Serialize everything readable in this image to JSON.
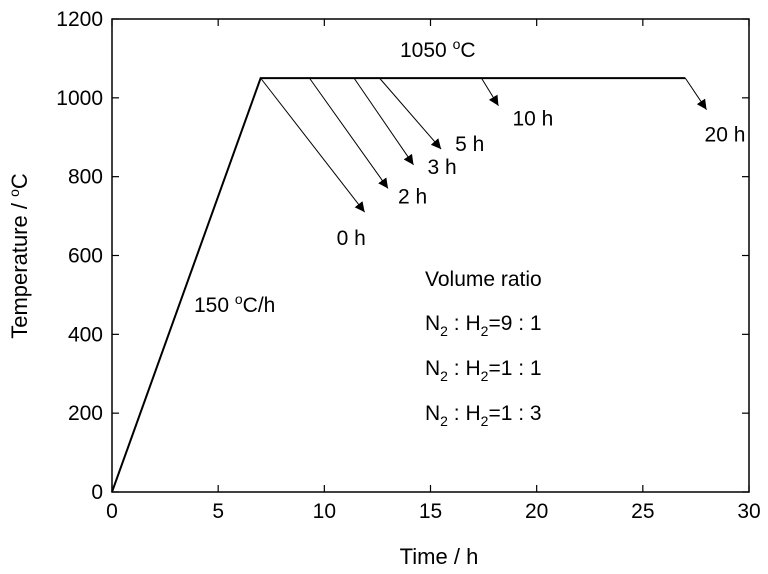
{
  "chart_data": {
    "type": "line",
    "title": "",
    "xlabel": "Time / h",
    "ylabel_text": "Temperature / ",
    "ylabel_unit_sup": "o",
    "ylabel_unit": "C",
    "xlim": [
      0,
      30
    ],
    "ylim": [
      0,
      1200
    ],
    "xticks": [
      0,
      5,
      10,
      15,
      20,
      25,
      30
    ],
    "xtick_labels": [
      "0",
      "5",
      "10",
      "15",
      "20",
      "25",
      "30"
    ],
    "yticks": [
      0,
      200,
      400,
      600,
      800,
      1000,
      1200
    ],
    "ytick_labels": [
      "0",
      "200",
      "400",
      "600",
      "800",
      "1000",
      "1200"
    ],
    "grid": false,
    "series": [
      {
        "x": [
          0,
          7.0,
          27.0
        ],
        "y": [
          0,
          1050,
          1050
        ],
        "color": "#000000"
      }
    ],
    "annotations": {
      "plateau": {
        "num": "1050 ",
        "sup": "o",
        "unit": "C"
      },
      "rate": {
        "num": "150 ",
        "sup": "o",
        "unit": "C/h"
      },
      "volume_title": "Volume ratio",
      "ratios": [
        {
          "a": "N",
          "a_sub": "2",
          "mid": " : H",
          "b_sub": "2",
          "rest": "=9 : 1"
        },
        {
          "a": "N",
          "a_sub": "2",
          "mid": " : H",
          "b_sub": "2",
          "rest": "=1 : 1"
        },
        {
          "a": "N",
          "a_sub": "2",
          "mid": " : H",
          "b_sub": "2",
          "rest": "=1 : 3"
        }
      ]
    },
    "holds": [
      {
        "label": "0 h",
        "start": [
          7.0,
          1050
        ],
        "end": [
          11.9,
          710
        ]
      },
      {
        "label": "2 h",
        "start": [
          9.3,
          1050
        ],
        "end": [
          13.0,
          770
        ]
      },
      {
        "label": "3 h",
        "start": [
          11.4,
          1050
        ],
        "end": [
          14.2,
          830
        ]
      },
      {
        "label": "5 h",
        "start": [
          12.6,
          1050
        ],
        "end": [
          15.5,
          870
        ]
      },
      {
        "label": "10 h",
        "start": [
          17.4,
          1050
        ],
        "end": [
          18.2,
          980
        ]
      },
      {
        "label": "20 h",
        "start": [
          27.0,
          1050
        ],
        "end": [
          28.0,
          970
        ]
      }
    ]
  }
}
